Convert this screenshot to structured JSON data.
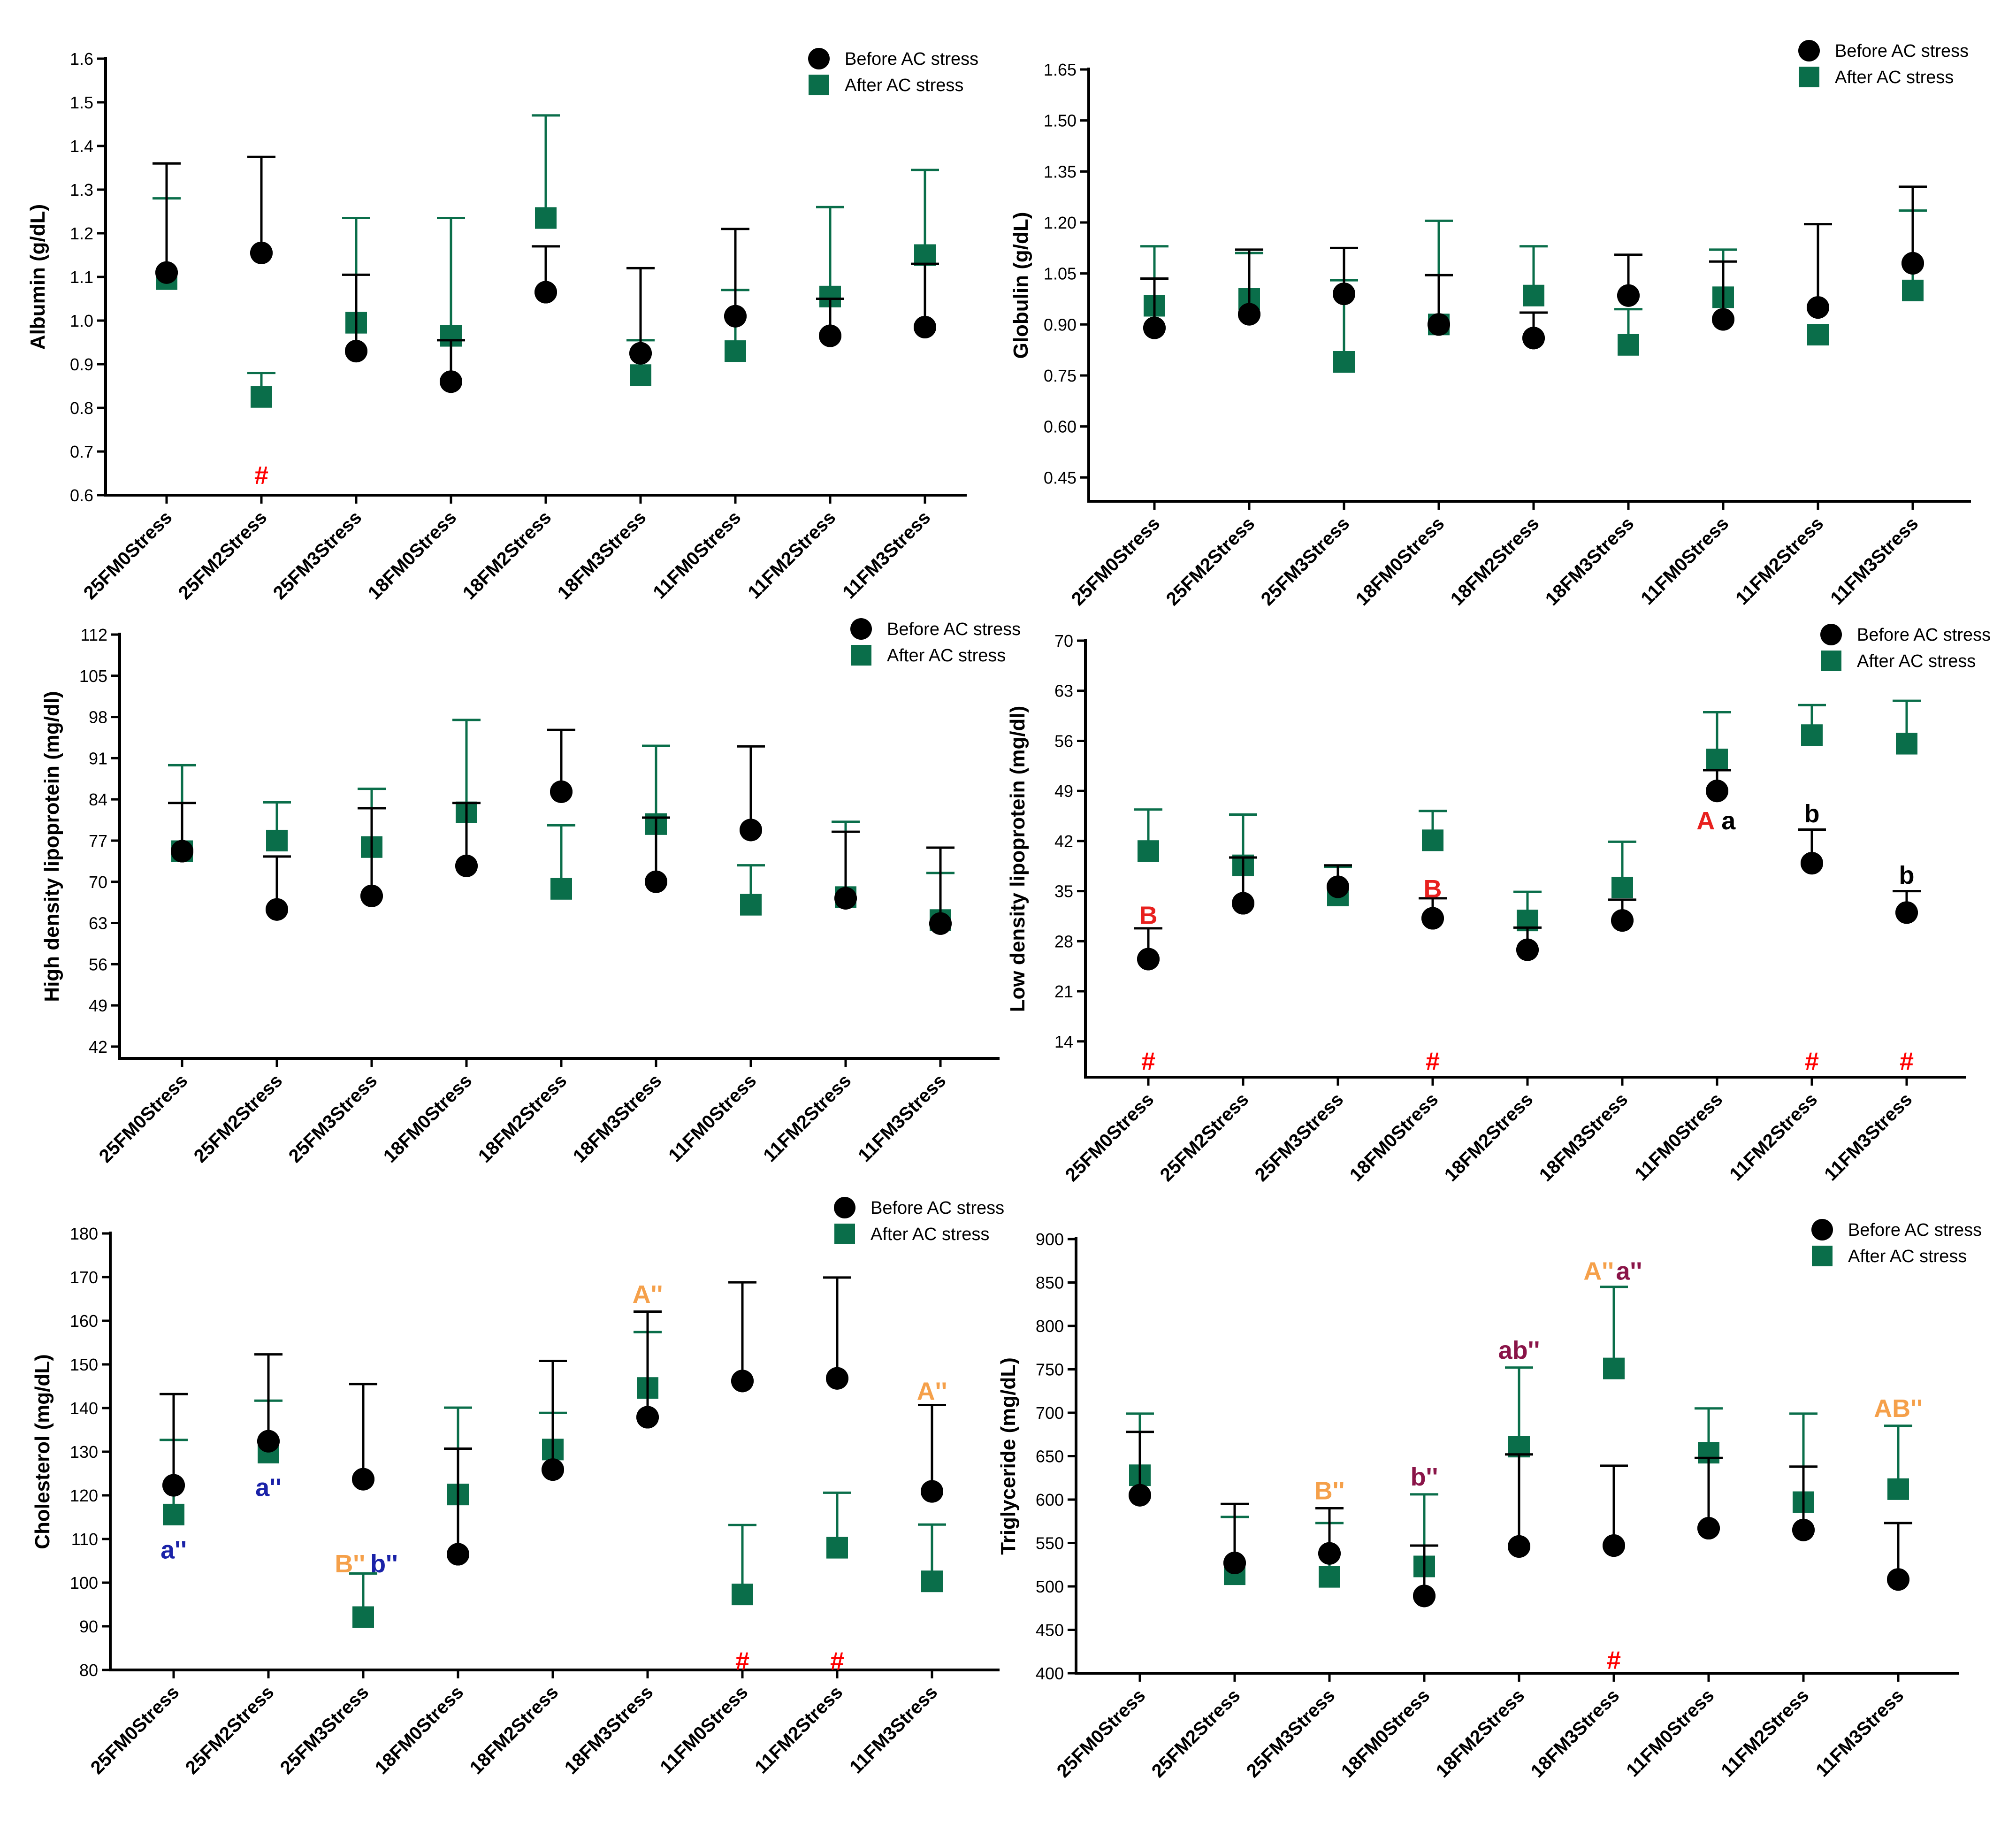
{
  "colors": {
    "before": "#000000",
    "after": "#0a6e4a",
    "hash": "#ff0000",
    "uppercase_red": "#e8201e",
    "orange": "#f5a04a",
    "blue": "#1a22a8",
    "purple": "#8a1448"
  },
  "legend": {
    "before": "Before AC stress",
    "after": "After AC stress"
  },
  "chart_data": [
    {
      "id": "albumin",
      "type": "scatter",
      "title": "",
      "xlabel": "",
      "ylabel": "Albumin (g/dL)",
      "ylim": [
        0.6,
        1.6
      ],
      "yticks": [
        "0.6",
        "0.7",
        "0.8",
        "0.9",
        "1.0",
        "1.1",
        "1.2",
        "1.3",
        "1.4",
        "1.5",
        "1.6"
      ],
      "categories": [
        "25FM0Stress",
        "25FM2Stress",
        "25FM3Stress",
        "18FM0Stress",
        "18FM2Stress",
        "18FM3Stress",
        "11FM0Stress",
        "11FM2Stress",
        "11FM3Stress"
      ],
      "series": [
        {
          "name": "Before AC stress",
          "values": [
            1.11,
            1.155,
            0.93,
            0.86,
            1.065,
            0.925,
            1.01,
            0.965,
            0.985
          ],
          "error": [
            0.25,
            0.22,
            0.175,
            0.095,
            0.105,
            0.195,
            0.2,
            0.085,
            0.145
          ]
        },
        {
          "name": "After AC stress",
          "values": [
            1.095,
            0.825,
            0.995,
            0.965,
            1.235,
            0.875,
            0.93,
            1.055,
            1.15
          ],
          "error": [
            0.185,
            0.055,
            0.24,
            0.27,
            0.235,
            0.08,
            0.14,
            0.205,
            0.195
          ]
        }
      ],
      "annotations": [
        {
          "text": "#",
          "category": 1,
          "y": 0.645,
          "color": "hash",
          "size": 54
        }
      ]
    },
    {
      "id": "globulin",
      "type": "scatter",
      "title": "",
      "xlabel": "",
      "ylabel": "Globulin (g/dL)",
      "ylim": [
        0.38,
        1.65
      ],
      "yticks": [
        "0.45",
        "0.60",
        "0.75",
        "0.90",
        "1.05",
        "1.20",
        "1.35",
        "1.50",
        "1.65"
      ],
      "categories": [
        "25FM0Stress",
        "25FM2Stress",
        "25FM3Stress",
        "18FM0Stress",
        "18FM2Stress",
        "18FM3Stress",
        "11FM0Stress",
        "11FM2Stress",
        "11FM3Stress"
      ],
      "series": [
        {
          "name": "Before AC stress",
          "values": [
            0.89,
            0.93,
            0.99,
            0.9,
            0.86,
            0.985,
            0.915,
            0.95,
            1.08
          ],
          "error": [
            0.145,
            0.19,
            0.135,
            0.145,
            0.075,
            0.12,
            0.17,
            0.245,
            0.225
          ]
        },
        {
          "name": "After AC stress",
          "values": [
            0.955,
            0.975,
            0.79,
            0.9,
            0.985,
            0.84,
            0.98,
            0.87,
            1.0
          ],
          "error": [
            0.175,
            0.135,
            0.24,
            0.305,
            0.145,
            0.105,
            0.14,
            0.0,
            0.235
          ]
        }
      ],
      "annotations": []
    },
    {
      "id": "hdl",
      "type": "scatter",
      "title": "",
      "xlabel": "",
      "ylabel": "High density lipoprotein (mg/dl)",
      "ylim": [
        40,
        112
      ],
      "yticks": [
        "42",
        "49",
        "56",
        "63",
        "70",
        "77",
        "84",
        "91",
        "98",
        "105",
        "112"
      ],
      "categories": [
        "25FM0Stress",
        "25FM2Stress",
        "25FM3Stress",
        "18FM0Stress",
        "18FM2Stress",
        "18FM3Stress",
        "11FM0Stress",
        "11FM2Stress",
        "11FM3Stress"
      ],
      "series": [
        {
          "name": "Before AC stress",
          "values": [
            75.2,
            65.3,
            67.6,
            72.7,
            85.3,
            70.0,
            78.8,
            67.2,
            62.9
          ],
          "error": [
            8.2,
            9.0,
            14.9,
            10.7,
            10.5,
            10.9,
            14.2,
            11.3,
            12.9
          ]
        },
        {
          "name": "After AC stress",
          "values": [
            75.2,
            77.0,
            75.9,
            81.8,
            68.8,
            79.8,
            66.1,
            67.4,
            63.5
          ],
          "error": [
            14.6,
            6.5,
            9.9,
            15.7,
            10.8,
            13.3,
            6.7,
            12.8,
            8.0
          ]
        }
      ],
      "annotations": []
    },
    {
      "id": "ldl",
      "type": "scatter",
      "title": "",
      "xlabel": "",
      "ylabel": "Low density lipoprotein (mg/dl)",
      "ylim": [
        9,
        70
      ],
      "yticks": [
        "14",
        "21",
        "28",
        "35",
        "42",
        "49",
        "56",
        "63",
        "70"
      ],
      "categories": [
        "25FM0Stress",
        "25FM2Stress",
        "25FM3Stress",
        "18FM0Stress",
        "18FM2Stress",
        "18FM3Stress",
        "11FM0Stress",
        "11FM2Stress",
        "11FM3Stress"
      ],
      "series": [
        {
          "name": "Before AC stress",
          "values": [
            25.5,
            33.3,
            35.6,
            31.2,
            26.8,
            30.9,
            49.0,
            38.9,
            32.0
          ],
          "error": [
            4.3,
            6.4,
            3.0,
            2.8,
            3.1,
            2.9,
            2.9,
            4.7,
            3.0
          ]
        },
        {
          "name": "After AC stress",
          "values": [
            40.6,
            38.6,
            34.4,
            42.1,
            30.9,
            35.5,
            53.4,
            56.8,
            55.6
          ],
          "error": [
            5.8,
            7.1,
            4.0,
            4.1,
            4.0,
            6.4,
            6.6,
            4.2,
            6.0
          ]
        }
      ],
      "annotations": [
        {
          "text": "B",
          "category": 0,
          "y": 31.6,
          "color": "uppercase_red",
          "size": 54
        },
        {
          "text": "B",
          "category": 3,
          "y": 35.3,
          "color": "uppercase_red",
          "size": 54
        },
        {
          "text": "A",
          "category": 6,
          "y": 44.8,
          "dx": -0.12,
          "color": "uppercase_red",
          "size": 54
        },
        {
          "text": "a",
          "category": 6,
          "y": 44.8,
          "dx": 0.12,
          "color": "before",
          "size": 54
        },
        {
          "text": "b",
          "category": 7,
          "y": 45.8,
          "color": "before",
          "size": 54
        },
        {
          "text": "b",
          "category": 8,
          "y": 37.2,
          "color": "before",
          "size": 54
        },
        {
          "text": "#",
          "category": 0,
          "y": 11.2,
          "color": "hash",
          "size": 54
        },
        {
          "text": "#",
          "category": 3,
          "y": 11.2,
          "color": "hash",
          "size": 54
        },
        {
          "text": "#",
          "category": 7,
          "y": 11.2,
          "color": "hash",
          "size": 54
        },
        {
          "text": "#",
          "category": 8,
          "y": 11.2,
          "color": "hash",
          "size": 54
        }
      ]
    },
    {
      "id": "cholesterol",
      "type": "scatter",
      "title": "",
      "xlabel": "",
      "ylabel": "Cholesterol (mg/dL)",
      "ylim": [
        80,
        180
      ],
      "yticks": [
        "80",
        "90",
        "100",
        "110",
        "120",
        "130",
        "140",
        "150",
        "160",
        "170",
        "180"
      ],
      "categories": [
        "25FM0Stress",
        "25FM2Stress",
        "25FM3Stress",
        "18FM0Stress",
        "18FM2Stress",
        "18FM3Stress",
        "11FM0Stress",
        "11FM2Stress",
        "11FM3Stress"
      ],
      "series": [
        {
          "name": "Before AC stress",
          "values": [
            122.3,
            132.4,
            123.7,
            106.5,
            125.9,
            137.9,
            146.2,
            146.8,
            120.9
          ],
          "error": [
            20.9,
            19.9,
            21.8,
            24.2,
            24.9,
            24.2,
            22.6,
            23.1,
            19.8
          ]
        },
        {
          "name": "After AC stress",
          "values": [
            115.6,
            129.8,
            92.1,
            120.2,
            130.5,
            144.6,
            97.3,
            108.0,
            100.3
          ],
          "error": [
            17.1,
            11.9,
            10.0,
            19.9,
            8.4,
            12.8,
            15.9,
            12.6,
            13.0
          ]
        }
      ],
      "annotations": [
        {
          "text": "a''",
          "category": 0,
          "y": 107.5,
          "color": "blue",
          "size": 54
        },
        {
          "text": "a''",
          "category": 1,
          "y": 121.8,
          "color": "blue",
          "size": 54
        },
        {
          "text": "B''",
          "category": 2,
          "y": 104.3,
          "dx": -0.14,
          "color": "orange",
          "size": 54
        },
        {
          "text": "b''",
          "category": 2,
          "y": 104.3,
          "dx": 0.22,
          "color": "blue",
          "size": 54
        },
        {
          "text": "A''",
          "category": 5,
          "y": 166.0,
          "color": "orange",
          "size": 54
        },
        {
          "text": "A''",
          "category": 8,
          "y": 143.8,
          "color": "orange",
          "size": 54
        },
        {
          "text": "#",
          "category": 6,
          "y": 82.0,
          "color": "hash",
          "size": 54
        },
        {
          "text": "#",
          "category": 7,
          "y": 82.0,
          "color": "hash",
          "size": 54
        }
      ]
    },
    {
      "id": "triglyceride",
      "type": "scatter",
      "title": "",
      "xlabel": "",
      "ylabel": "Triglyceride (mg/dL)",
      "ylim": [
        400,
        900
      ],
      "yticks": [
        "400",
        "450",
        "500",
        "550",
        "600",
        "650",
        "700",
        "750",
        "800",
        "850",
        "900"
      ],
      "categories": [
        "25FM0Stress",
        "25FM2Stress",
        "25FM3Stress",
        "18FM0Stress",
        "18FM2Stress",
        "18FM3Stress",
        "11FM0Stress",
        "11FM2Stress",
        "11FM3Stress"
      ],
      "series": [
        {
          "name": "Before AC stress",
          "values": [
            605,
            527,
            538,
            489,
            546,
            547,
            567,
            565,
            508
          ],
          "error": [
            73,
            68,
            52,
            58,
            106,
            92,
            81,
            73,
            65
          ]
        },
        {
          "name": "After AC stress",
          "values": [
            628,
            514,
            511,
            523,
            661,
            751,
            654,
            597,
            612
          ],
          "error": [
            71,
            66,
            62,
            83,
            91,
            94,
            51,
            102,
            73
          ]
        }
      ],
      "annotations": [
        {
          "text": "B''",
          "category": 2,
          "y": 610,
          "color": "orange",
          "size": 54
        },
        {
          "text": "b''",
          "category": 3,
          "y": 626,
          "color": "purple",
          "size": 54
        },
        {
          "text": "ab''",
          "category": 4,
          "y": 772,
          "color": "purple",
          "size": 54
        },
        {
          "text": "A''",
          "category": 5,
          "y": 863,
          "dx": -0.16,
          "color": "orange",
          "size": 54
        },
        {
          "text": "a''",
          "category": 5,
          "y": 863,
          "dx": 0.16,
          "color": "purple",
          "size": 54
        },
        {
          "text": "AB''",
          "category": 8,
          "y": 705,
          "color": "orange",
          "size": 54
        },
        {
          "text": "#",
          "category": 5,
          "y": 415,
          "color": "hash",
          "size": 54
        }
      ]
    }
  ]
}
